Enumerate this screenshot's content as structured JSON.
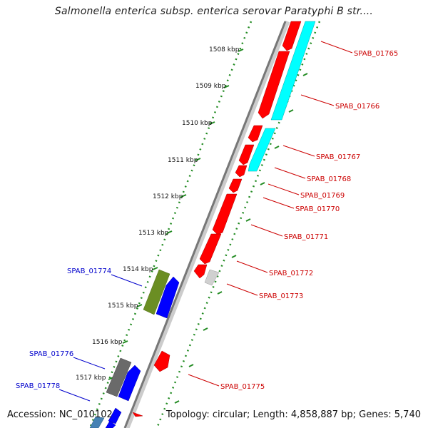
{
  "title": "Salmonella enterica subsp. enterica serovar Paratyphi B str....",
  "footer": {
    "accession": "Accession: NC_010102",
    "info": "Topology: circular; Length: 4,858,887 bp; Genes: 5,740"
  },
  "colors": {
    "red_gene": "#ff0000",
    "blue_gene": "#0000ff",
    "cyan_gene": "#00ffff",
    "olive_gene": "#6b8e23",
    "gray_gene": "#707070",
    "green_tick": "#228b22",
    "red_label": "#cc0000",
    "blue_label": "#0000cc"
  },
  "ticks": [
    {
      "label": "1508 kbp"
    },
    {
      "label": "1509 kbp"
    },
    {
      "label": "1510 kbp"
    },
    {
      "label": "1511 kbp"
    },
    {
      "label": "1512 kbp"
    },
    {
      "label": "1513 kbp"
    },
    {
      "label": "1514 kbp"
    },
    {
      "label": "1515 kbp"
    },
    {
      "label": "1516 kbp"
    },
    {
      "label": "1517 kbp"
    }
  ],
  "gene_labels": [
    {
      "text": "SPAB_01765",
      "strand": "right"
    },
    {
      "text": "SPAB_01766",
      "strand": "right"
    },
    {
      "text": "SPAB_01767",
      "strand": "right"
    },
    {
      "text": "SPAB_01768",
      "strand": "right"
    },
    {
      "text": "SPAB_01769",
      "strand": "right"
    },
    {
      "text": "SPAB_01770",
      "strand": "right"
    },
    {
      "text": "SPAB_01771",
      "strand": "right"
    },
    {
      "text": "SPAB_01772",
      "strand": "right"
    },
    {
      "text": "SPAB_01773",
      "strand": "right"
    },
    {
      "text": "SPAB_01775",
      "strand": "right"
    },
    {
      "text": "SPAB_01774",
      "strand": "left"
    },
    {
      "text": "SPAB_01776",
      "strand": "left"
    },
    {
      "text": "SPAB_01778",
      "strand": "left"
    }
  ]
}
